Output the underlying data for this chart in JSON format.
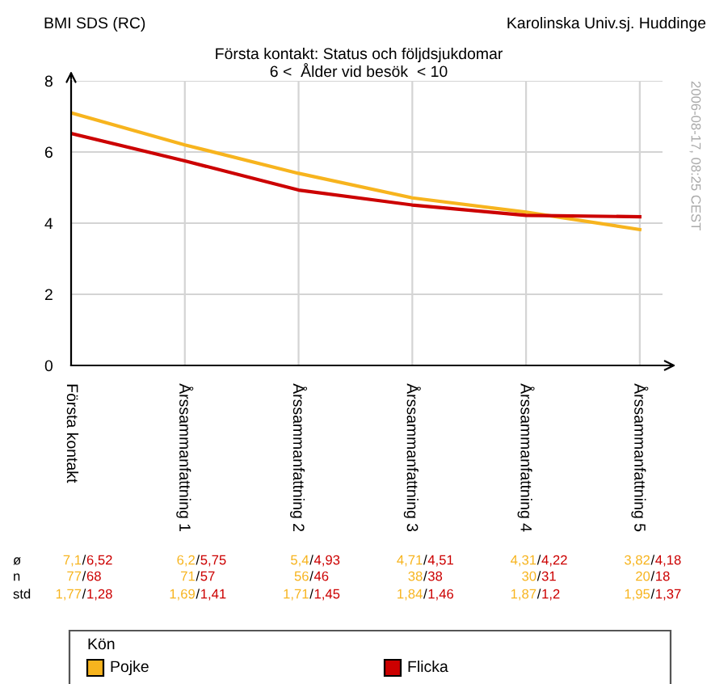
{
  "chart_data": {
    "type": "line",
    "title": "Första kontakt: Status och följdsjukdomar",
    "subtitle": "6 <  Ålder vid besök  < 10",
    "ylabel": "BMI SDS (RC)",
    "legend_title": "Kön",
    "categories": [
      "Första kontakt",
      "Årssammanfattning 1",
      "Årssammanfattning 2",
      "Årssammanfattning 3",
      "Årssammanfattning 4",
      "Årssammanfattning 5"
    ],
    "series": [
      {
        "name": "Pojke",
        "color": "#f7b41e",
        "values": [
          7.1,
          6.2,
          5.4,
          4.71,
          4.31,
          3.82
        ]
      },
      {
        "name": "Flicka",
        "color": "#cc0000",
        "values": [
          6.52,
          5.75,
          4.93,
          4.51,
          4.22,
          4.18
        ]
      }
    ],
    "ylim": [
      0,
      8
    ],
    "yticks": [
      0,
      2,
      4,
      6,
      8
    ],
    "grid": true,
    "legend": "bottom",
    "marker": "none",
    "line_style": "solid",
    "annotations": [
      "Karolinska Univ.sj. Huddinge",
      "2006-08-17, 08:25 CEST",
      "ø",
      "n",
      "std",
      "/",
      "7,1",
      "6,52",
      "6,2",
      "5,75",
      "5,4",
      "4,93",
      "4,71",
      "4,51",
      "4,31",
      "4,22",
      "3,82",
      "4,18",
      "77",
      "68",
      "71",
      "57",
      "56",
      "46",
      "38",
      "38",
      "30",
      "31",
      "20",
      "18",
      "1,77",
      "1,28",
      "1,69",
      "1,41",
      "1,71",
      "1,45",
      "1,84",
      "1,46",
      "1,87",
      "1,2",
      "1,95",
      "1,37"
    ]
  }
}
